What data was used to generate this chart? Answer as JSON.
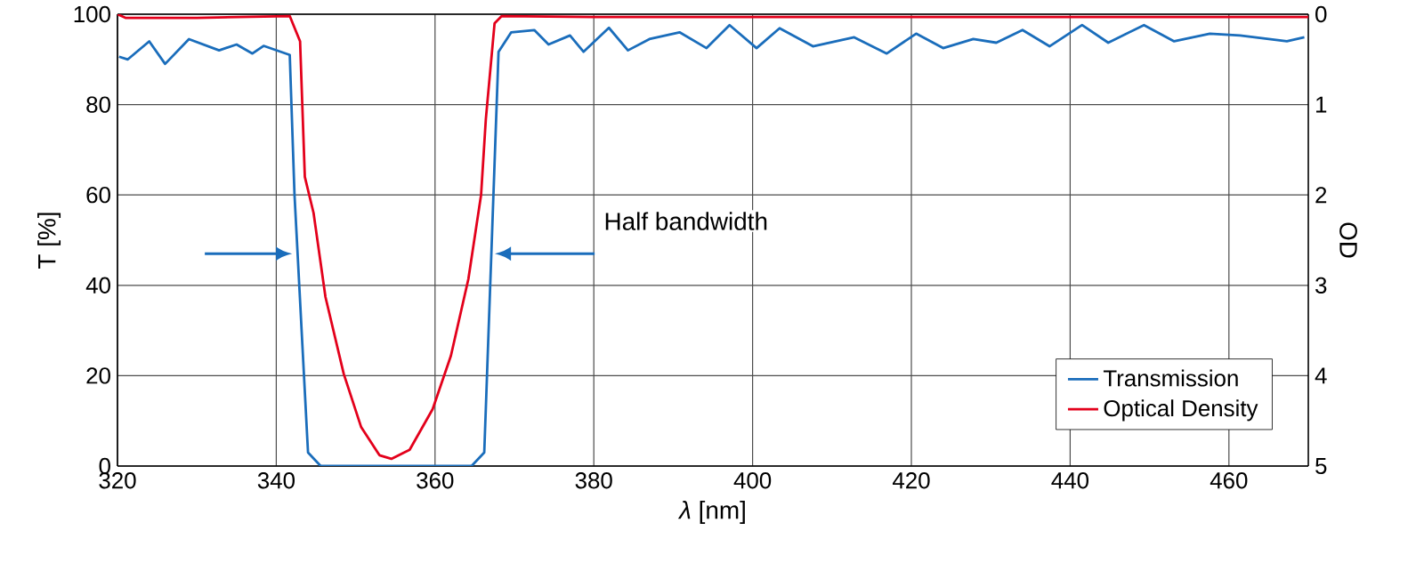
{
  "chart_data": {
    "type": "line",
    "xlabel": "*λ* [nm]",
    "ylabel": "T [%]",
    "y2label": "OD",
    "xlim": [
      320,
      470
    ],
    "xticks": [
      320,
      340,
      360,
      380,
      400,
      420,
      440,
      460
    ],
    "ylim": [
      0,
      100
    ],
    "yticks": [
      0,
      20,
      40,
      60,
      80,
      100
    ],
    "y2lim": [
      5,
      0
    ],
    "y2ticks": [
      0,
      1,
      2,
      3,
      4,
      5
    ],
    "grid": true,
    "legend": "bottom right",
    "annotations": [
      "Half bandwidth"
    ],
    "series": [
      {
        "name": "Transmission",
        "color": "#1a6dbb",
        "x": [
          320.2,
          321.3,
          324,
          326,
          329,
          332.8,
          335,
          337,
          338.4,
          341.7,
          342.3,
          344,
          345.6,
          364.6,
          366.2,
          368,
          369.6,
          372.5,
          374.3,
          377,
          378.7,
          381.9,
          384.3,
          387,
          390.8,
          394.2,
          397.1,
          400.5,
          403.4,
          407.6,
          412.8,
          416.9,
          420.6,
          424,
          427.8,
          430.7,
          434,
          437.4,
          441.5,
          444.8,
          449.3,
          453.1,
          457.6,
          461.4,
          467.3,
          469.5
        ],
        "values": [
          90.6,
          90,
          94,
          89,
          94.5,
          92,
          93.3,
          91.3,
          93,
          91,
          60,
          3,
          0,
          0,
          3,
          91.7,
          96,
          96.5,
          93.3,
          95.3,
          91.7,
          97,
          92,
          94.5,
          96,
          92.5,
          97.6,
          92.5,
          96.9,
          92.9,
          94.9,
          91.3,
          95.7,
          92.5,
          94.5,
          93.7,
          96.5,
          92.9,
          97.6,
          93.7,
          97.6,
          94,
          95.7,
          95.3,
          94,
          94.9
        ]
      },
      {
        "name": "Optical Density",
        "color": "#e3001b",
        "axis": "y2",
        "x": [
          320,
          321,
          330,
          341.7,
          343,
          343.6,
          344.7,
          346.2,
          348.5,
          350.7,
          353,
          354.5,
          356.8,
          359.7,
          362,
          364.2,
          365.8,
          366.4,
          367.5,
          368.4,
          380,
          400,
          420,
          440,
          460,
          470
        ],
        "values": [
          0,
          0.04,
          0.04,
          0.02,
          0.3,
          1.8,
          2.2,
          3.13,
          3.98,
          4.57,
          4.88,
          4.92,
          4.82,
          4.37,
          3.78,
          2.93,
          2.0,
          1.16,
          0.1,
          0.02,
          0.03,
          0.03,
          0.03,
          0.03,
          0.03,
          0.03
        ]
      }
    ]
  }
}
